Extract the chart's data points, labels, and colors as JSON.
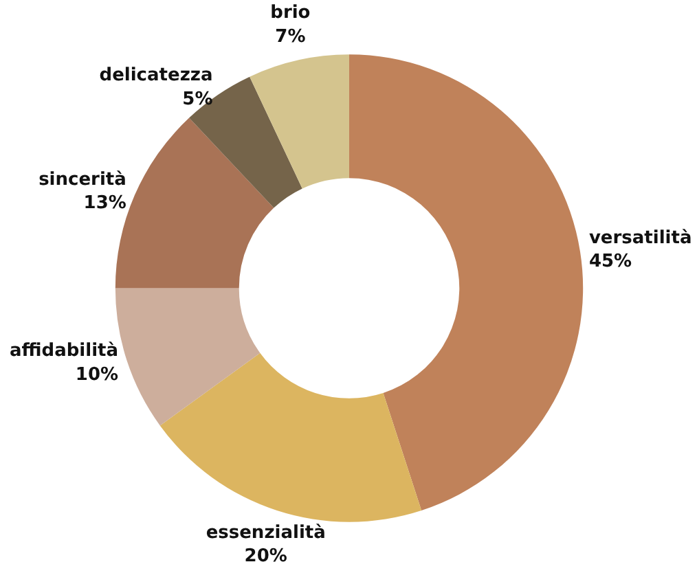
{
  "chart_data": {
    "type": "donut",
    "categories": [
      "versatilità",
      "essenzialità",
      "affidabilità",
      "sincerità",
      "delicatezza",
      "brio"
    ],
    "values": [
      45,
      20,
      10,
      13,
      5,
      7
    ],
    "value_labels": [
      "45%",
      "20%",
      "10%",
      "13%",
      "5%",
      "7%"
    ],
    "colors": [
      "#c0825a",
      "#dcb560",
      "#cdae9c",
      "#a97356",
      "#75644a",
      "#d4c48e"
    ]
  }
}
